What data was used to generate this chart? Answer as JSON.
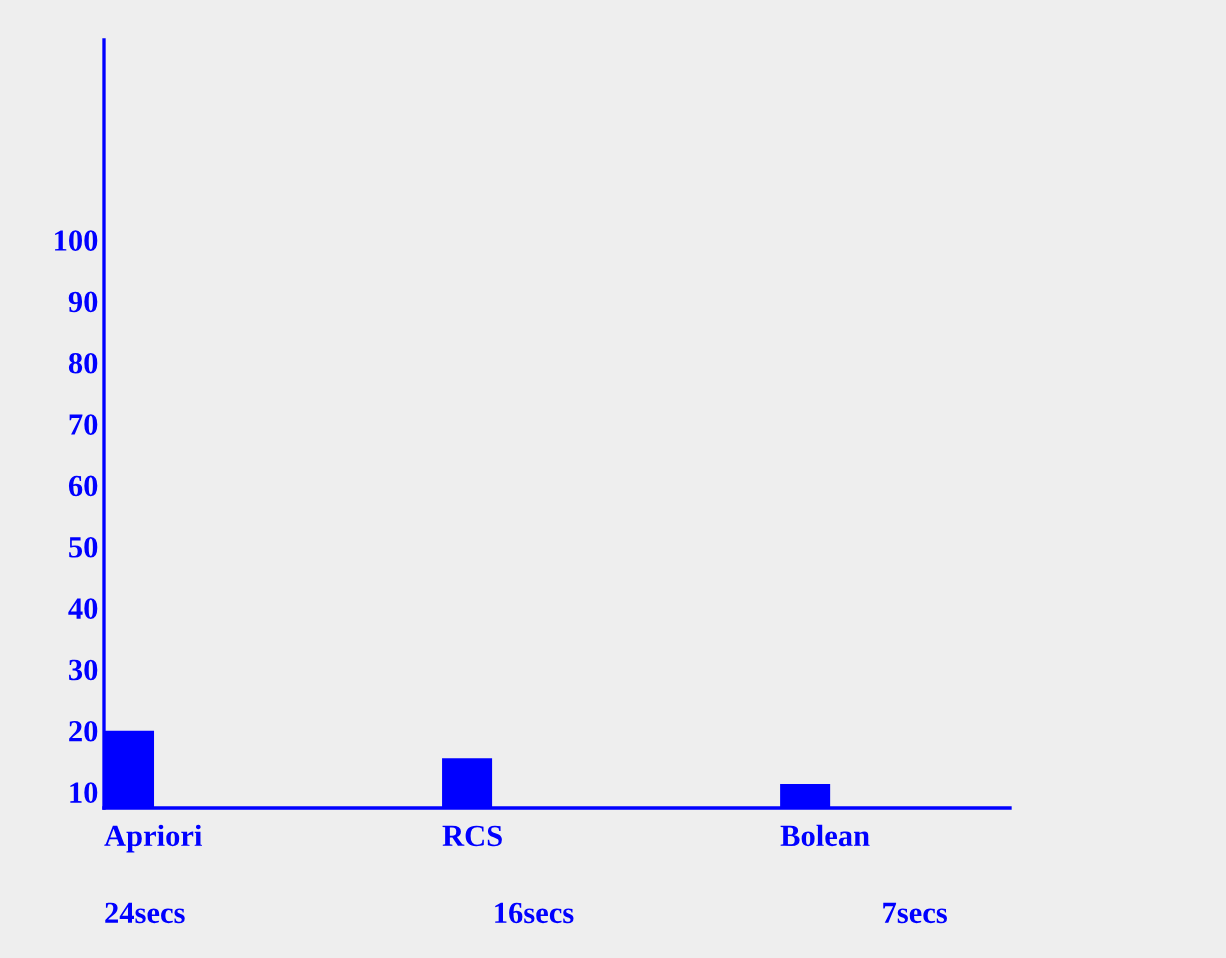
{
  "chart_data": {
    "type": "bar",
    "categories": [
      "Apriori",
      "RCS",
      "Bolean"
    ],
    "values": [
      20,
      15.5,
      11.3
    ],
    "color": "#0000ff",
    "ylim": [
      7.4,
      132.6
    ],
    "yticks": [
      10,
      20,
      30,
      40,
      50,
      60,
      70,
      80,
      90,
      100
    ],
    "grid": false,
    "annotations": [
      "24secs",
      "16secs",
      "7secs"
    ]
  }
}
